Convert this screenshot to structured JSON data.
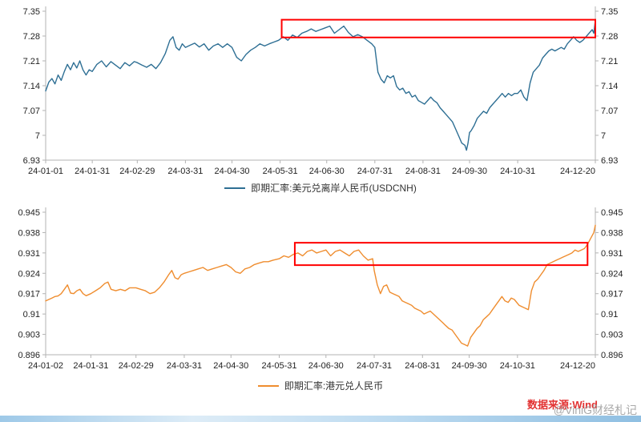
{
  "footer": {
    "source_label": "数据来源:Wind",
    "source_color": "#e23333",
    "watermark": "@ViniG财经札记",
    "watermark_color": "#9c9c9c"
  },
  "chart_data": [
    {
      "type": "line",
      "name": "usdcnh",
      "legend": "即期汇率:美元兑离岸人民币(USDCNH)",
      "color": "#2e6f94",
      "highlight_color": "#ff0000",
      "y_min": 6.93,
      "y_max": 7.35,
      "y_tick_labels": [
        "7.35",
        "7.28",
        "7.21",
        "7.14",
        "7.07",
        "7",
        "6.93"
      ],
      "x_max_day": 354,
      "x_ticks": [
        {
          "d": 0,
          "l": "24-01-01"
        },
        {
          "d": 30,
          "l": "24-01-31"
        },
        {
          "d": 59,
          "l": "24-02-29"
        },
        {
          "d": 90,
          "l": "24-03-31"
        },
        {
          "d": 120,
          "l": "24-04-30"
        },
        {
          "d": 151,
          "l": "24-05-31"
        },
        {
          "d": 181,
          "l": "24-06-30"
        },
        {
          "d": 212,
          "l": "24-07-31"
        },
        {
          "d": 243,
          "l": "24-08-31"
        },
        {
          "d": 273,
          "l": "24-09-30"
        },
        {
          "d": 304,
          "l": "24-10-31"
        },
        {
          "d": 354,
          "l": "24-12-20"
        }
      ],
      "highlight_box": {
        "x0_day": 152,
        "x1_day": 354,
        "y0": 7.276,
        "y1": 7.326
      },
      "points": [
        [
          0,
          7.125
        ],
        [
          2,
          7.15
        ],
        [
          4,
          7.16
        ],
        [
          6,
          7.145
        ],
        [
          8,
          7.17
        ],
        [
          10,
          7.155
        ],
        [
          12,
          7.18
        ],
        [
          14,
          7.2
        ],
        [
          16,
          7.185
        ],
        [
          18,
          7.205
        ],
        [
          20,
          7.19
        ],
        [
          22,
          7.21
        ],
        [
          24,
          7.185
        ],
        [
          26,
          7.17
        ],
        [
          28,
          7.185
        ],
        [
          30,
          7.18
        ],
        [
          33,
          7.2
        ],
        [
          36,
          7.21
        ],
        [
          39,
          7.193
        ],
        [
          42,
          7.208
        ],
        [
          45,
          7.198
        ],
        [
          48,
          7.188
        ],
        [
          51,
          7.205
        ],
        [
          54,
          7.196
        ],
        [
          57,
          7.208
        ],
        [
          59,
          7.205
        ],
        [
          62,
          7.198
        ],
        [
          65,
          7.192
        ],
        [
          68,
          7.2
        ],
        [
          71,
          7.188
        ],
        [
          74,
          7.205
        ],
        [
          77,
          7.23
        ],
        [
          80,
          7.268
        ],
        [
          82,
          7.278
        ],
        [
          84,
          7.248
        ],
        [
          86,
          7.24
        ],
        [
          88,
          7.258
        ],
        [
          90,
          7.248
        ],
        [
          93,
          7.254
        ],
        [
          96,
          7.26
        ],
        [
          99,
          7.249
        ],
        [
          102,
          7.258
        ],
        [
          105,
          7.24
        ],
        [
          108,
          7.252
        ],
        [
          111,
          7.258
        ],
        [
          114,
          7.248
        ],
        [
          117,
          7.258
        ],
        [
          120,
          7.248
        ],
        [
          123,
          7.22
        ],
        [
          126,
          7.21
        ],
        [
          129,
          7.228
        ],
        [
          132,
          7.24
        ],
        [
          135,
          7.248
        ],
        [
          138,
          7.258
        ],
        [
          141,
          7.252
        ],
        [
          144,
          7.258
        ],
        [
          147,
          7.263
        ],
        [
          150,
          7.268
        ],
        [
          153,
          7.278
        ],
        [
          156,
          7.268
        ],
        [
          159,
          7.283
        ],
        [
          162,
          7.276
        ],
        [
          165,
          7.288
        ],
        [
          168,
          7.293
        ],
        [
          171,
          7.3
        ],
        [
          174,
          7.293
        ],
        [
          177,
          7.298
        ],
        [
          180,
          7.303
        ],
        [
          183,
          7.308
        ],
        [
          186,
          7.288
        ],
        [
          189,
          7.298
        ],
        [
          192,
          7.308
        ],
        [
          195,
          7.29
        ],
        [
          198,
          7.278
        ],
        [
          201,
          7.284
        ],
        [
          204,
          7.278
        ],
        [
          207,
          7.268
        ],
        [
          210,
          7.258
        ],
        [
          212,
          7.248
        ],
        [
          214,
          7.178
        ],
        [
          216,
          7.158
        ],
        [
          218,
          7.148
        ],
        [
          220,
          7.168
        ],
        [
          222,
          7.162
        ],
        [
          224,
          7.168
        ],
        [
          226,
          7.138
        ],
        [
          228,
          7.128
        ],
        [
          230,
          7.133
        ],
        [
          232,
          7.118
        ],
        [
          234,
          7.123
        ],
        [
          236,
          7.108
        ],
        [
          238,
          7.113
        ],
        [
          240,
          7.098
        ],
        [
          242,
          7.093
        ],
        [
          244,
          7.088
        ],
        [
          246,
          7.098
        ],
        [
          248,
          7.108
        ],
        [
          250,
          7.098
        ],
        [
          252,
          7.092
        ],
        [
          254,
          7.078
        ],
        [
          256,
          7.068
        ],
        [
          258,
          7.058
        ],
        [
          260,
          7.048
        ],
        [
          262,
          7.038
        ],
        [
          264,
          7.018
        ],
        [
          266,
          6.998
        ],
        [
          268,
          6.978
        ],
        [
          270,
          6.972
        ],
        [
          271,
          6.958
        ],
        [
          272,
          6.978
        ],
        [
          273,
          7.008
        ],
        [
          274,
          7.013
        ],
        [
          276,
          7.028
        ],
        [
          278,
          7.048
        ],
        [
          280,
          7.058
        ],
        [
          282,
          7.068
        ],
        [
          284,
          7.062
        ],
        [
          286,
          7.078
        ],
        [
          288,
          7.088
        ],
        [
          290,
          7.098
        ],
        [
          292,
          7.108
        ],
        [
          294,
          7.118
        ],
        [
          296,
          7.108
        ],
        [
          298,
          7.118
        ],
        [
          300,
          7.112
        ],
        [
          302,
          7.118
        ],
        [
          304,
          7.118
        ],
        [
          306,
          7.128
        ],
        [
          308,
          7.108
        ],
        [
          310,
          7.098
        ],
        [
          312,
          7.148
        ],
        [
          314,
          7.178
        ],
        [
          316,
          7.188
        ],
        [
          318,
          7.198
        ],
        [
          320,
          7.218
        ],
        [
          322,
          7.228
        ],
        [
          324,
          7.238
        ],
        [
          326,
          7.243
        ],
        [
          328,
          7.238
        ],
        [
          330,
          7.243
        ],
        [
          332,
          7.248
        ],
        [
          334,
          7.243
        ],
        [
          336,
          7.258
        ],
        [
          338,
          7.268
        ],
        [
          340,
          7.278
        ],
        [
          342,
          7.268
        ],
        [
          344,
          7.262
        ],
        [
          346,
          7.268
        ],
        [
          348,
          7.278
        ],
        [
          350,
          7.288
        ],
        [
          352,
          7.298
        ],
        [
          353,
          7.288
        ],
        [
          354,
          7.324
        ]
      ]
    },
    {
      "type": "line",
      "name": "hkdcny",
      "legend": "即期汇率:港元兑人民币",
      "color": "#ef8d2f",
      "highlight_color": "#ff0000",
      "y_min": 0.896,
      "y_max": 0.945,
      "y_tick_labels": [
        "0.945",
        "0.938",
        "0.931",
        "0.924",
        "0.917",
        "0.91",
        "0.903",
        "0.896"
      ],
      "x_max_day": 353,
      "x_ticks": [
        {
          "d": 0,
          "l": "24-01-02"
        },
        {
          "d": 29,
          "l": "24-01-31"
        },
        {
          "d": 58,
          "l": "24-02-29"
        },
        {
          "d": 89,
          "l": "24-03-31"
        },
        {
          "d": 119,
          "l": "24-04-30"
        },
        {
          "d": 150,
          "l": "24-05-31"
        },
        {
          "d": 180,
          "l": "24-06-30"
        },
        {
          "d": 211,
          "l": "24-07-31"
        },
        {
          "d": 242,
          "l": "24-08-31"
        },
        {
          "d": 272,
          "l": "24-09-30"
        },
        {
          "d": 303,
          "l": "24-10-31"
        },
        {
          "d": 353,
          "l": "24-12-20"
        }
      ],
      "highlight_box": {
        "x0_day": 160,
        "x1_day": 348,
        "y0": 0.9268,
        "y1": 0.9345
      },
      "points": [
        [
          0,
          0.9145
        ],
        [
          2,
          0.915
        ],
        [
          4,
          0.9155
        ],
        [
          6,
          0.916
        ],
        [
          8,
          0.9162
        ],
        [
          10,
          0.917
        ],
        [
          12,
          0.9185
        ],
        [
          14,
          0.92
        ],
        [
          16,
          0.9172
        ],
        [
          18,
          0.917
        ],
        [
          20,
          0.918
        ],
        [
          22,
          0.9185
        ],
        [
          24,
          0.917
        ],
        [
          26,
          0.9163
        ],
        [
          29,
          0.917
        ],
        [
          32,
          0.918
        ],
        [
          35,
          0.919
        ],
        [
          38,
          0.9205
        ],
        [
          40,
          0.921
        ],
        [
          42,
          0.9185
        ],
        [
          45,
          0.918
        ],
        [
          48,
          0.9185
        ],
        [
          51,
          0.918
        ],
        [
          54,
          0.919
        ],
        [
          58,
          0.919
        ],
        [
          61,
          0.9185
        ],
        [
          64,
          0.918
        ],
        [
          67,
          0.917
        ],
        [
          70,
          0.9175
        ],
        [
          73,
          0.919
        ],
        [
          76,
          0.921
        ],
        [
          79,
          0.9235
        ],
        [
          81,
          0.925
        ],
        [
          83,
          0.9225
        ],
        [
          85,
          0.922
        ],
        [
          87,
          0.9235
        ],
        [
          89,
          0.924
        ],
        [
          92,
          0.9245
        ],
        [
          95,
          0.925
        ],
        [
          98,
          0.9255
        ],
        [
          101,
          0.926
        ],
        [
          104,
          0.925
        ],
        [
          107,
          0.9255
        ],
        [
          110,
          0.926
        ],
        [
          113,
          0.9265
        ],
        [
          116,
          0.927
        ],
        [
          119,
          0.926
        ],
        [
          122,
          0.9245
        ],
        [
          125,
          0.924
        ],
        [
          128,
          0.9255
        ],
        [
          131,
          0.926
        ],
        [
          134,
          0.927
        ],
        [
          137,
          0.9275
        ],
        [
          140,
          0.928
        ],
        [
          143,
          0.928
        ],
        [
          146,
          0.9285
        ],
        [
          150,
          0.929
        ],
        [
          153,
          0.93
        ],
        [
          156,
          0.9295
        ],
        [
          159,
          0.9305
        ],
        [
          162,
          0.931
        ],
        [
          165,
          0.93
        ],
        [
          168,
          0.9315
        ],
        [
          171,
          0.932
        ],
        [
          174,
          0.931
        ],
        [
          177,
          0.9315
        ],
        [
          180,
          0.932
        ],
        [
          183,
          0.93
        ],
        [
          186,
          0.9315
        ],
        [
          189,
          0.932
        ],
        [
          192,
          0.931
        ],
        [
          195,
          0.93
        ],
        [
          198,
          0.9315
        ],
        [
          201,
          0.932
        ],
        [
          204,
          0.93
        ],
        [
          207,
          0.9285
        ],
        [
          210,
          0.929
        ],
        [
          211,
          0.925
        ],
        [
          213,
          0.92
        ],
        [
          215,
          0.917
        ],
        [
          217,
          0.9195
        ],
        [
          219,
          0.92
        ],
        [
          221,
          0.9175
        ],
        [
          223,
          0.917
        ],
        [
          225,
          0.9165
        ],
        [
          227,
          0.916
        ],
        [
          229,
          0.9145
        ],
        [
          231,
          0.914
        ],
        [
          233,
          0.9135
        ],
        [
          235,
          0.913
        ],
        [
          237,
          0.912
        ],
        [
          239,
          0.9115
        ],
        [
          241,
          0.911
        ],
        [
          243,
          0.91
        ],
        [
          245,
          0.9105
        ],
        [
          247,
          0.911
        ],
        [
          249,
          0.91
        ],
        [
          251,
          0.909
        ],
        [
          253,
          0.908
        ],
        [
          255,
          0.907
        ],
        [
          257,
          0.906
        ],
        [
          259,
          0.905
        ],
        [
          261,
          0.9045
        ],
        [
          263,
          0.903
        ],
        [
          265,
          0.9015
        ],
        [
          267,
          0.9
        ],
        [
          269,
          0.8995
        ],
        [
          271,
          0.899
        ],
        [
          273,
          0.902
        ],
        [
          275,
          0.9035
        ],
        [
          277,
          0.905
        ],
        [
          279,
          0.906
        ],
        [
          281,
          0.908
        ],
        [
          283,
          0.909
        ],
        [
          285,
          0.91
        ],
        [
          287,
          0.9115
        ],
        [
          289,
          0.913
        ],
        [
          291,
          0.9145
        ],
        [
          293,
          0.916
        ],
        [
          295,
          0.9145
        ],
        [
          297,
          0.914
        ],
        [
          299,
          0.9155
        ],
        [
          301,
          0.915
        ],
        [
          304,
          0.913
        ],
        [
          306,
          0.9125
        ],
        [
          308,
          0.912
        ],
        [
          310,
          0.9115
        ],
        [
          312,
          0.918
        ],
        [
          314,
          0.921
        ],
        [
          316,
          0.922
        ],
        [
          318,
          0.9235
        ],
        [
          320,
          0.925
        ],
        [
          322,
          0.927
        ],
        [
          324,
          0.9275
        ],
        [
          326,
          0.928
        ],
        [
          328,
          0.9285
        ],
        [
          330,
          0.929
        ],
        [
          332,
          0.9295
        ],
        [
          334,
          0.93
        ],
        [
          336,
          0.9305
        ],
        [
          338,
          0.931
        ],
        [
          340,
          0.932
        ],
        [
          342,
          0.9315
        ],
        [
          344,
          0.932
        ],
        [
          346,
          0.9325
        ],
        [
          348,
          0.934
        ],
        [
          350,
          0.936
        ],
        [
          352,
          0.938
        ],
        [
          353,
          0.9405
        ]
      ]
    }
  ]
}
